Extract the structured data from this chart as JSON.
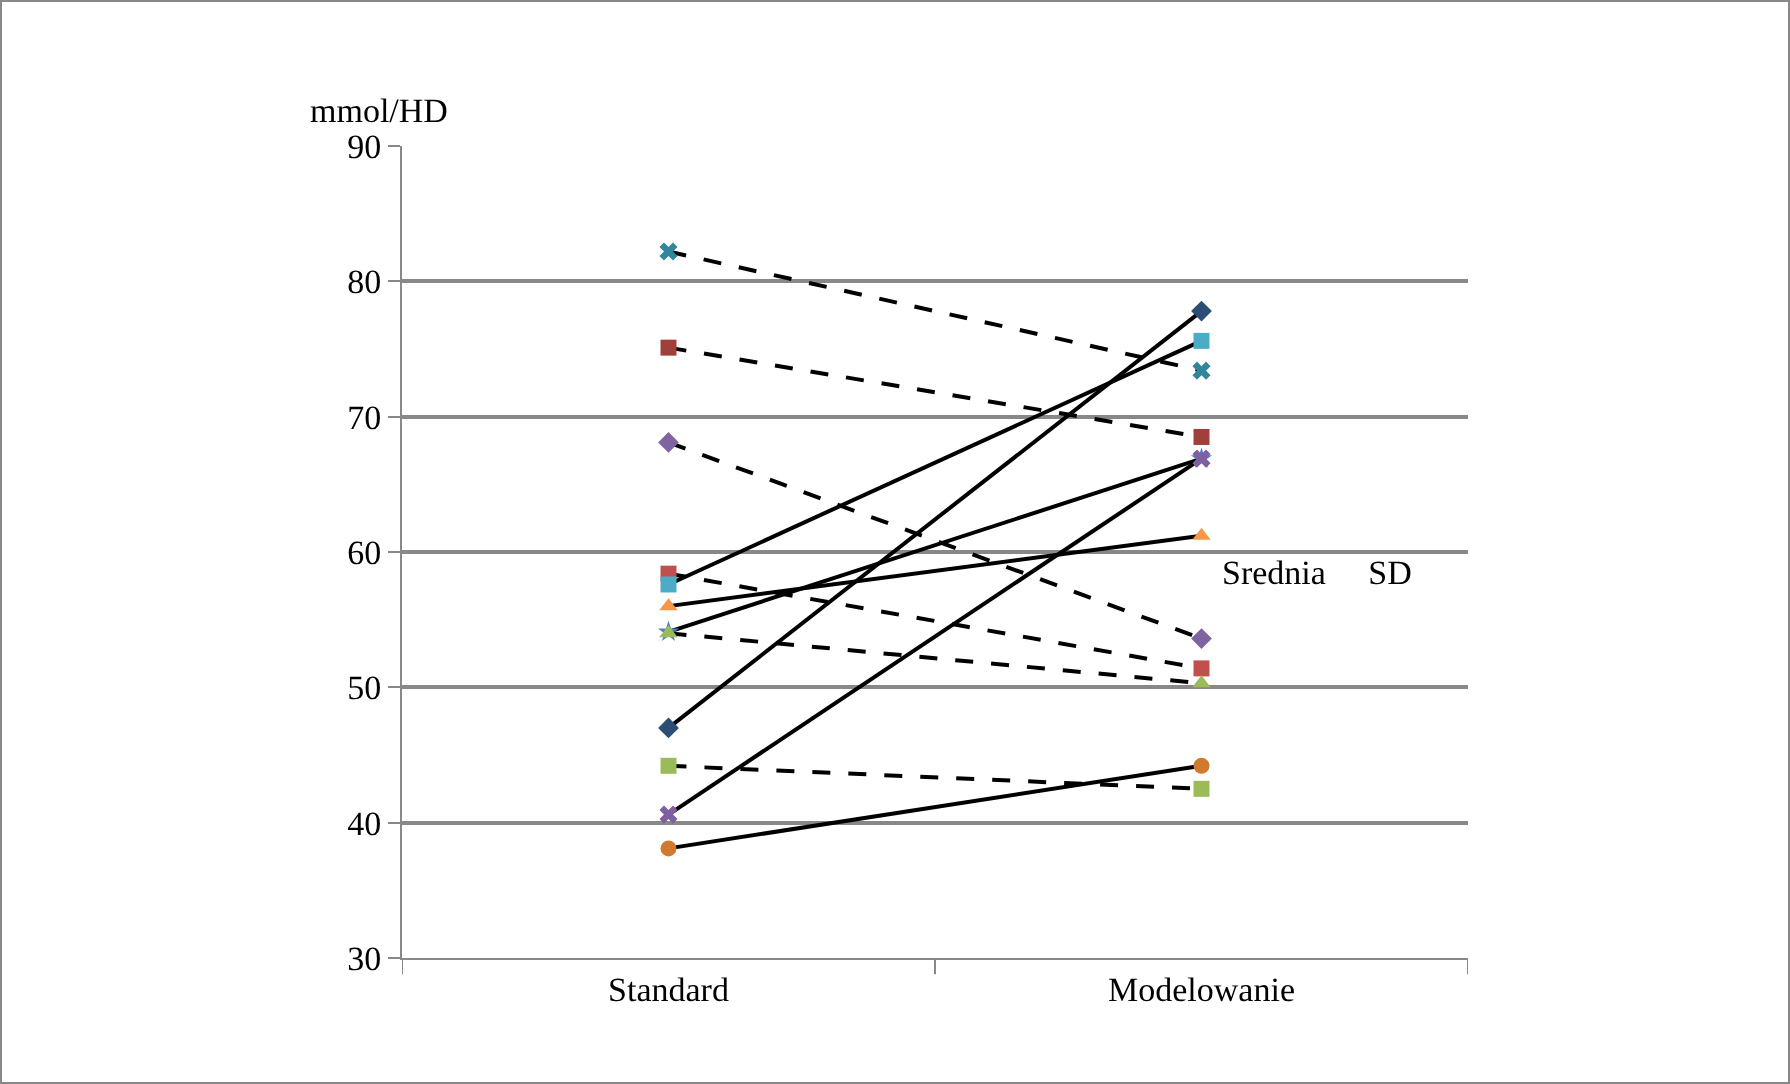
{
  "chart_data": {
    "type": "line",
    "ylabel": "mmol/HD",
    "categories": [
      "Standard",
      "Modelowanie"
    ],
    "series": [
      {
        "color": "#000000",
        "colors": [
          "#31859c",
          "#31859c"
        ],
        "values": [
          82.2,
          73.4
        ],
        "marker": "cross",
        "line_style": "dashed"
      },
      {
        "color": "#000000",
        "colors": [
          "#a0403c",
          "#a0403c"
        ],
        "values": [
          75.1,
          68.5
        ],
        "marker": "square",
        "line_style": "dashed"
      },
      {
        "color": "#000000",
        "colors": [
          "#8064a2",
          "#8064a2"
        ],
        "values": [
          68.1,
          53.6
        ],
        "marker": "diamond",
        "line_style": "dashed"
      },
      {
        "color": "#000000",
        "colors": [
          "#c0504d",
          "#c0504d"
        ],
        "values": [
          58.4,
          51.4
        ],
        "marker": "square",
        "line_style": "dashed"
      },
      {
        "color": "#000000",
        "colors": [
          "#4bacc6",
          "#4bacc6"
        ],
        "values": [
          57.6,
          75.6
        ],
        "marker": "square",
        "line_style": "solid"
      },
      {
        "color": "#000000",
        "colors": [
          "#f79646",
          "#f79646"
        ],
        "values": [
          56.0,
          61.2
        ],
        "marker": "triangle",
        "line_style": "solid"
      },
      {
        "color": "#000000",
        "colors": [
          "#4f81bd",
          "#4f81bd"
        ],
        "values": [
          54.1,
          66.9
        ],
        "marker": "star",
        "line_style": "solid"
      },
      {
        "color": "#000000",
        "colors": [
          "#9bbb59",
          "#9bbb59"
        ],
        "values": [
          54.0,
          50.3
        ],
        "marker": "triangle",
        "line_style": "dashed"
      },
      {
        "color": "#000000",
        "colors": [
          "#2c4d75",
          "#2c4d75"
        ],
        "values": [
          47.0,
          77.8
        ],
        "marker": "diamond",
        "line_style": "solid"
      },
      {
        "color": "#000000",
        "colors": [
          "#9bbb59",
          "#9bbb59"
        ],
        "values": [
          44.2,
          42.5
        ],
        "marker": "square",
        "line_style": "dashed"
      },
      {
        "color": "#000000",
        "colors": [
          "#7f5fa0",
          "#7f5fa0"
        ],
        "values": [
          40.6,
          66.9
        ],
        "marker": "cross",
        "line_style": "solid"
      },
      {
        "color": "#000000",
        "colors": [
          "#d07a30",
          "#d07a30"
        ],
        "values": [
          38.1,
          44.2
        ],
        "marker": "circle",
        "line_style": "solid"
      }
    ],
    "annotations": [
      "Srednia     SD"
    ],
    "ylim": [
      30,
      90
    ],
    "yticks": [
      30,
      40,
      50,
      60,
      70,
      80,
      90
    ],
    "grid": "y"
  }
}
